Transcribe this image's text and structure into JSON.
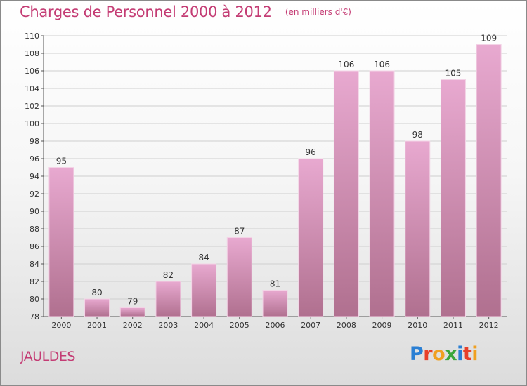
{
  "header": {
    "title": "Charges de Personnel 2000 à 2012",
    "subtitle": "(en milliers d'€)"
  },
  "footer": {
    "town": "JAULDES",
    "logo": "Proxiti",
    "logo_colors": [
      "#2a7fd4",
      "#e8402a",
      "#f0a020",
      "#3aa63a",
      "#2a7fd4",
      "#e8402a",
      "#f0a020"
    ]
  },
  "colors": {
    "title": "#c43c74",
    "bar_top": "#e8a9d0",
    "bar_bottom": "#b0708f"
  },
  "chart_data": {
    "type": "bar",
    "categories": [
      "2000",
      "2001",
      "2002",
      "2003",
      "2004",
      "2005",
      "2006",
      "2007",
      "2008",
      "2009",
      "2010",
      "2011",
      "2012"
    ],
    "values": [
      95,
      80,
      79,
      82,
      84,
      87,
      81,
      96,
      106,
      106,
      98,
      105,
      109
    ],
    "ylim": [
      78,
      110
    ],
    "yticks": [
      78,
      80,
      82,
      84,
      86,
      88,
      90,
      92,
      94,
      96,
      98,
      100,
      102,
      104,
      106,
      108,
      110
    ],
    "grid": true
  }
}
